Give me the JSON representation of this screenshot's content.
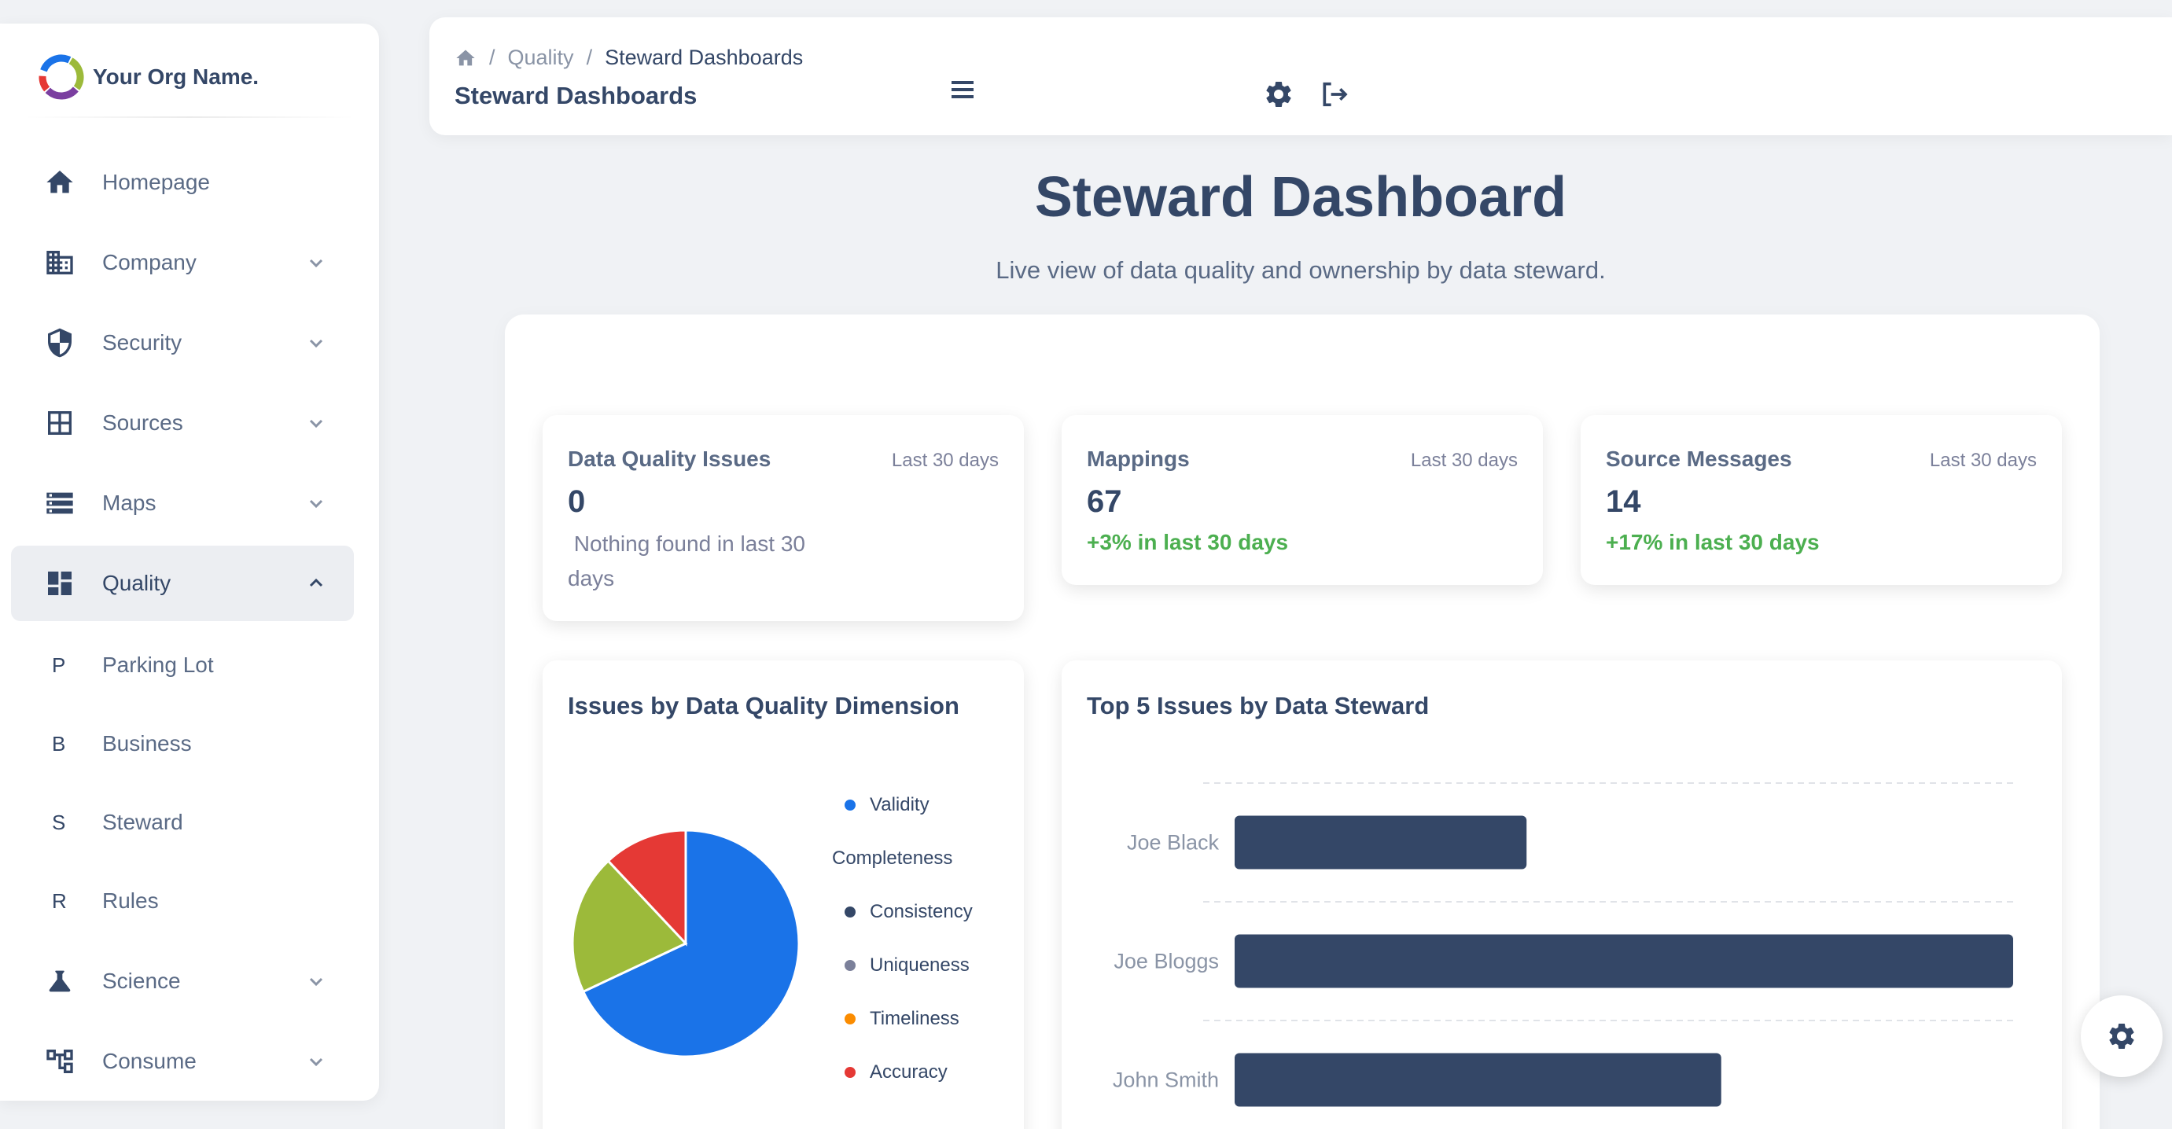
{
  "brand": {
    "name": "Your Org Name."
  },
  "sidebar": {
    "items": [
      {
        "label": "Homepage",
        "icon": "home-icon"
      },
      {
        "label": "Company",
        "icon": "building-icon"
      },
      {
        "label": "Security",
        "icon": "shield-icon"
      },
      {
        "label": "Sources",
        "icon": "grid-icon"
      },
      {
        "label": "Maps",
        "icon": "storage-icon"
      },
      {
        "label": "Quality",
        "icon": "dashboard-icon"
      },
      {
        "letter": "P",
        "label": "Parking Lot"
      },
      {
        "letter": "B",
        "label": "Business"
      },
      {
        "letter": "S",
        "label": "Steward"
      },
      {
        "letter": "R",
        "label": "Rules"
      },
      {
        "label": "Science",
        "icon": "flask-icon"
      },
      {
        "label": "Consume",
        "icon": "tree-icon"
      }
    ]
  },
  "topbar": {
    "breadcrumb": {
      "section": "Quality",
      "current": "Steward Dashboards"
    },
    "page_title": "Steward Dashboards"
  },
  "header": {
    "title": "Steward Dashboard",
    "subtitle": "Live view of data quality and ownership by data steward."
  },
  "stats": [
    {
      "title": "Data Quality Issues",
      "period": "Last 30 days",
      "value": "0",
      "note": " Nothing found in last 30 days"
    },
    {
      "title": "Mappings",
      "period": "Last 30 days",
      "value": "67",
      "change": "+3% in last 30 days"
    },
    {
      "title": "Source Messages",
      "period": "Last 30 days",
      "value": "14",
      "change": "+17% in last 30 days"
    }
  ],
  "colors": {
    "primary": "#344767",
    "success": "#4caf50",
    "validity": "#1a73e8",
    "completeness": "#9cba3a",
    "consistency": "#344767",
    "uniqueness": "#7b809a",
    "timeliness": "#fb8c00",
    "accuracy": "#e53935"
  },
  "chart_data": [
    {
      "type": "pie",
      "title": "Issues by Data Quality Dimension",
      "legend": [
        "Validity",
        "Completeness",
        "Consistency",
        "Uniqueness",
        "Timeliness",
        "Accuracy"
      ],
      "values": [
        68,
        20,
        0,
        0,
        0,
        12
      ],
      "legend_position": "right"
    },
    {
      "type": "bar",
      "orientation": "horizontal",
      "title": "Top 5 Issues by Data Steward",
      "categories": [
        "Joe Black",
        "Joe Bloggs",
        "John Smith"
      ],
      "values": [
        3,
        8,
        5
      ],
      "xlim": [
        0,
        8
      ],
      "grid": true
    }
  ]
}
